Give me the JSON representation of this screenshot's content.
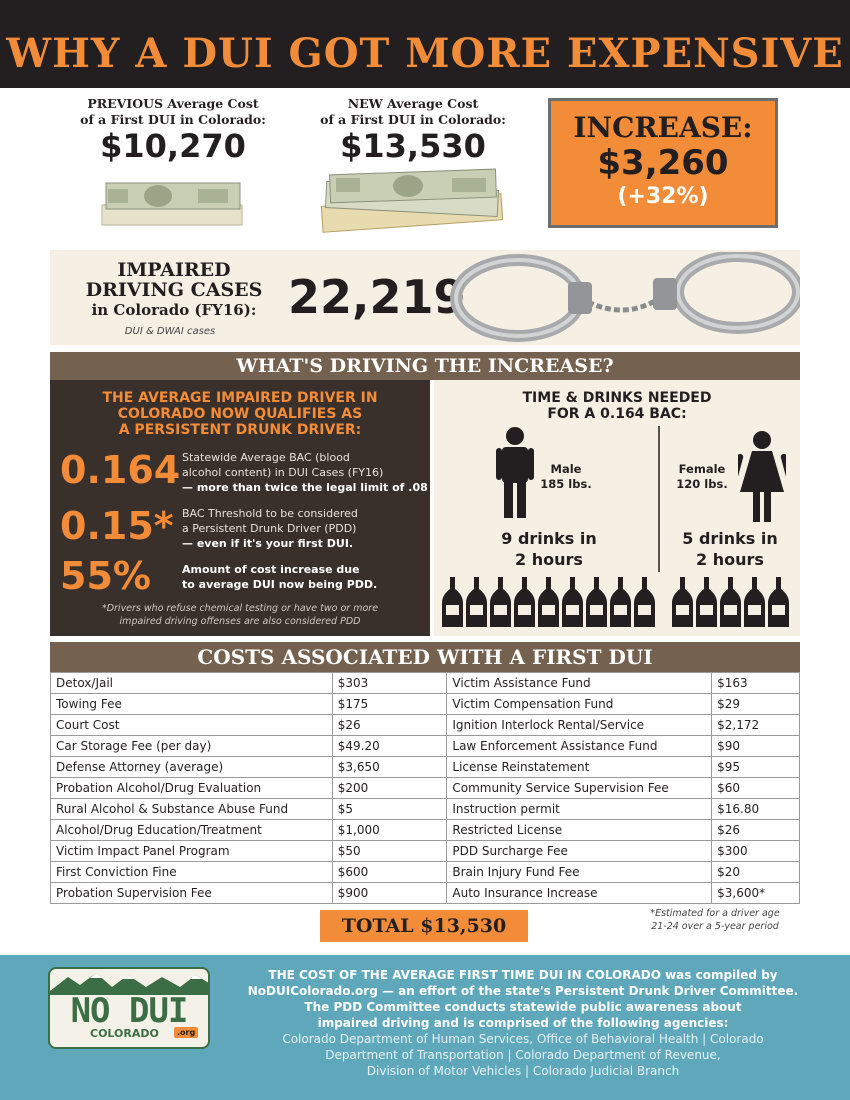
{
  "header": {
    "title": "WHY A DUI GOT MORE EXPENSIVE"
  },
  "previous": {
    "label_bold": "PREVIOUS",
    "label_rest": "Average Cost",
    "label_line2": "of a First DUI in Colorado:",
    "amount": "$10,270"
  },
  "new": {
    "label_bold": "NEW",
    "label_rest": "Average Cost",
    "label_line2": "of a First DUI in Colorado:",
    "amount": "$13,530"
  },
  "increase": {
    "label": "INCREASE:",
    "amount": "$3,260",
    "percent": "(+32%)"
  },
  "impaired": {
    "title_line1": "IMPAIRED",
    "title_line2": "DRIVING CASES",
    "title_line3": "in Colorado (FY16):",
    "note": "DUI & DWAI cases",
    "count": "22,219"
  },
  "section1": {
    "title": "WHAT'S DRIVING THE INCREASE?"
  },
  "pdd": {
    "heading_line1": "THE AVERAGE IMPAIRED DRIVER IN",
    "heading_line2": "COLORADO NOW QUALIFIES AS",
    "heading_line3": "A PERSISTENT DRUNK DRIVER:",
    "stats": [
      {
        "value": "0.164",
        "desc_line1": "Statewide Average BAC (blood",
        "desc_line2": "alcohol content) in DUI Cases (FY16)",
        "desc_bold": "— more than twice the legal limit of .08"
      },
      {
        "value": "0.15*",
        "desc_line1": "BAC Threshold to be considered",
        "desc_line2": "a Persistent Drunk Driver (PDD)",
        "desc_bold": "— even if it's your first DUI."
      },
      {
        "value": "55%",
        "desc_line1": "Amount of cost increase due",
        "desc_line2": "to average DUI now being PDD.",
        "desc_bold": ""
      }
    ],
    "footnote_line1": "*Drivers who refuse chemical testing or have two or more",
    "footnote_line2": "impaired driving offenses are also considered PDD"
  },
  "drinks": {
    "heading_line1": "TIME & DRINKS NEEDED",
    "heading_line2": "FOR A 0.164 BAC:",
    "male": {
      "label": "Male",
      "weight": "185 lbs.",
      "drinks": "9 drinks in",
      "hours": "2 hours",
      "bottle_count": 9
    },
    "female": {
      "label": "Female",
      "weight": "120 lbs.",
      "drinks": "5 drinks in",
      "hours": "2 hours",
      "bottle_count": 5
    }
  },
  "section2": {
    "title": "COSTS ASSOCIATED WITH A FIRST DUI"
  },
  "costs": [
    [
      "Detox/Jail",
      "$303",
      "Victim Assistance Fund",
      "$163"
    ],
    [
      "Towing Fee",
      "$175",
      "Victim Compensation Fund",
      "$29"
    ],
    [
      "Court Cost",
      "$26",
      "Ignition Interlock Rental/Service",
      "$2,172"
    ],
    [
      "Car Storage Fee (per day)",
      "$49.20",
      "Law Enforcement Assistance Fund",
      "$90"
    ],
    [
      "Defense Attorney (average)",
      "$3,650",
      "License Reinstatement",
      "$95"
    ],
    [
      "Probation Alcohol/Drug Evaluation",
      "$200",
      "Community Service Supervision Fee",
      "$60"
    ],
    [
      "Rural Alcohol & Substance Abuse Fund",
      "$5",
      "Instruction permit",
      "$16.80"
    ],
    [
      "Alcohol/Drug Education/Treatment",
      "$1,000",
      "Restricted License",
      "$26"
    ],
    [
      "Victim Impact Panel Program",
      "$50",
      "PDD Surcharge Fee",
      "$300"
    ],
    [
      "First Conviction Fine",
      "$600",
      "Brain Injury Fund Fee",
      "$20"
    ],
    [
      "Probation Supervision Fee",
      "$900",
      "Auto Insurance Increase",
      "$3,600*"
    ]
  ],
  "total": "TOTAL $13,530",
  "estimate_note_line1": "*Estimated for a driver age",
  "estimate_note_line2": "21-24 over a 5-year period",
  "footer": {
    "logo_text": "NO DUI",
    "logo_state": "COLORADO",
    "logo_org": ".org",
    "bold_line1": "THE COST OF THE AVERAGE FIRST TIME DUI IN COLORADO",
    "rest_line1": " was compiled by",
    "line2": "NoDUIColorado.org — an effort of the state's Persistent Drunk Driver Committee.",
    "line3": "The PDD Committee conducts statewide public awareness about",
    "line4": "impaired driving and is comprised of the following agencies:",
    "agency_line1": "Colorado Department of Human Services, Office of Behavioral Health | Colorado",
    "agency_line2": "Department of Transportation | Colorado Department of Revenue,",
    "agency_line3": "Division of Motor Vehicles | Colorado Judicial Branch"
  },
  "colors": {
    "accent": "#f28c38",
    "dark": "#231f20",
    "brown_bar": "#75614f",
    "panel_dark": "#3a302b",
    "panel_light": "#f6f0e4",
    "footer": "#5fa8bc",
    "plate_green": "#3b6e45"
  },
  "icons": [
    "money-stack-icon",
    "handcuffs-icon",
    "male-figure-icon",
    "female-figure-icon",
    "beer-bottle-icon",
    "license-plate-logo"
  ]
}
